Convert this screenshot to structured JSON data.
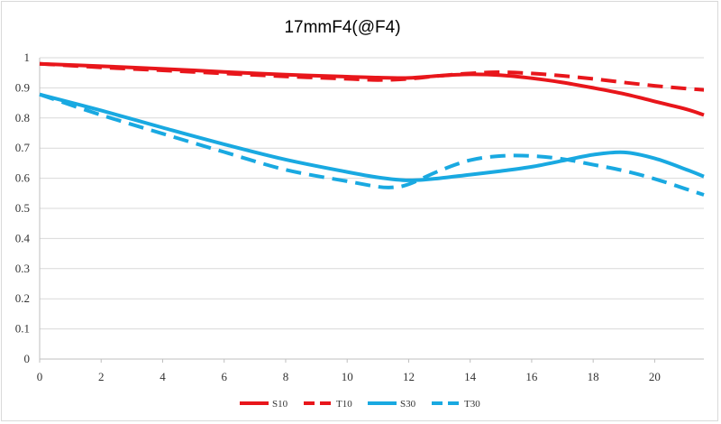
{
  "chart_data": {
    "type": "line",
    "title": "17mmF4(@F4)",
    "xlabel": "",
    "ylabel": "",
    "xlim": [
      0,
      21.6
    ],
    "ylim": [
      0,
      1
    ],
    "x_ticks": [
      "0",
      "2",
      "4",
      "6",
      "8",
      "10",
      "12",
      "14",
      "16",
      "18",
      "20"
    ],
    "y_ticks": [
      "0",
      "0.1",
      "0.2",
      "0.3",
      "0.4",
      "0.5",
      "0.6",
      "0.7",
      "0.8",
      "0.9",
      "1"
    ],
    "grid": "horizontal",
    "legend_position": "bottom",
    "series": [
      {
        "name": "S10",
        "color": "#e8161b",
        "dash": false,
        "x": [
          0,
          2,
          4,
          6,
          8,
          10,
          11,
          12,
          13,
          14,
          15,
          16,
          17,
          18,
          19,
          20,
          21,
          21.6
        ],
        "y": [
          0.98,
          0.972,
          0.963,
          0.953,
          0.944,
          0.937,
          0.934,
          0.933,
          0.94,
          0.945,
          0.942,
          0.932,
          0.918,
          0.9,
          0.88,
          0.855,
          0.83,
          0.81
        ]
      },
      {
        "name": "T10",
        "color": "#e8161b",
        "dash": true,
        "x": [
          0,
          2,
          4,
          6,
          8,
          10,
          11,
          12,
          13,
          14,
          15,
          16,
          17,
          18,
          19,
          20,
          21,
          21.6
        ],
        "y": [
          0.98,
          0.968,
          0.958,
          0.948,
          0.938,
          0.93,
          0.926,
          0.93,
          0.94,
          0.948,
          0.952,
          0.948,
          0.94,
          0.93,
          0.918,
          0.907,
          0.898,
          0.893
        ]
      },
      {
        "name": "S30",
        "color": "#19a9e1",
        "dash": false,
        "x": [
          0,
          2,
          4,
          6,
          8,
          10,
          11,
          12,
          13,
          14,
          15,
          16,
          17,
          18,
          19,
          20,
          21,
          21.6
        ],
        "y": [
          0.878,
          0.825,
          0.768,
          0.713,
          0.662,
          0.621,
          0.603,
          0.593,
          0.6,
          0.612,
          0.624,
          0.638,
          0.658,
          0.678,
          0.686,
          0.666,
          0.63,
          0.606
        ]
      },
      {
        "name": "T30",
        "color": "#19a9e1",
        "dash": true,
        "x": [
          0,
          2,
          4,
          6,
          8,
          10,
          11,
          11.5,
          12,
          13,
          14,
          15,
          16,
          17,
          18,
          19,
          20,
          21,
          21.6
        ],
        "y": [
          0.878,
          0.81,
          0.748,
          0.687,
          0.628,
          0.59,
          0.572,
          0.57,
          0.58,
          0.625,
          0.66,
          0.674,
          0.674,
          0.664,
          0.645,
          0.625,
          0.598,
          0.565,
          0.545
        ]
      }
    ]
  }
}
